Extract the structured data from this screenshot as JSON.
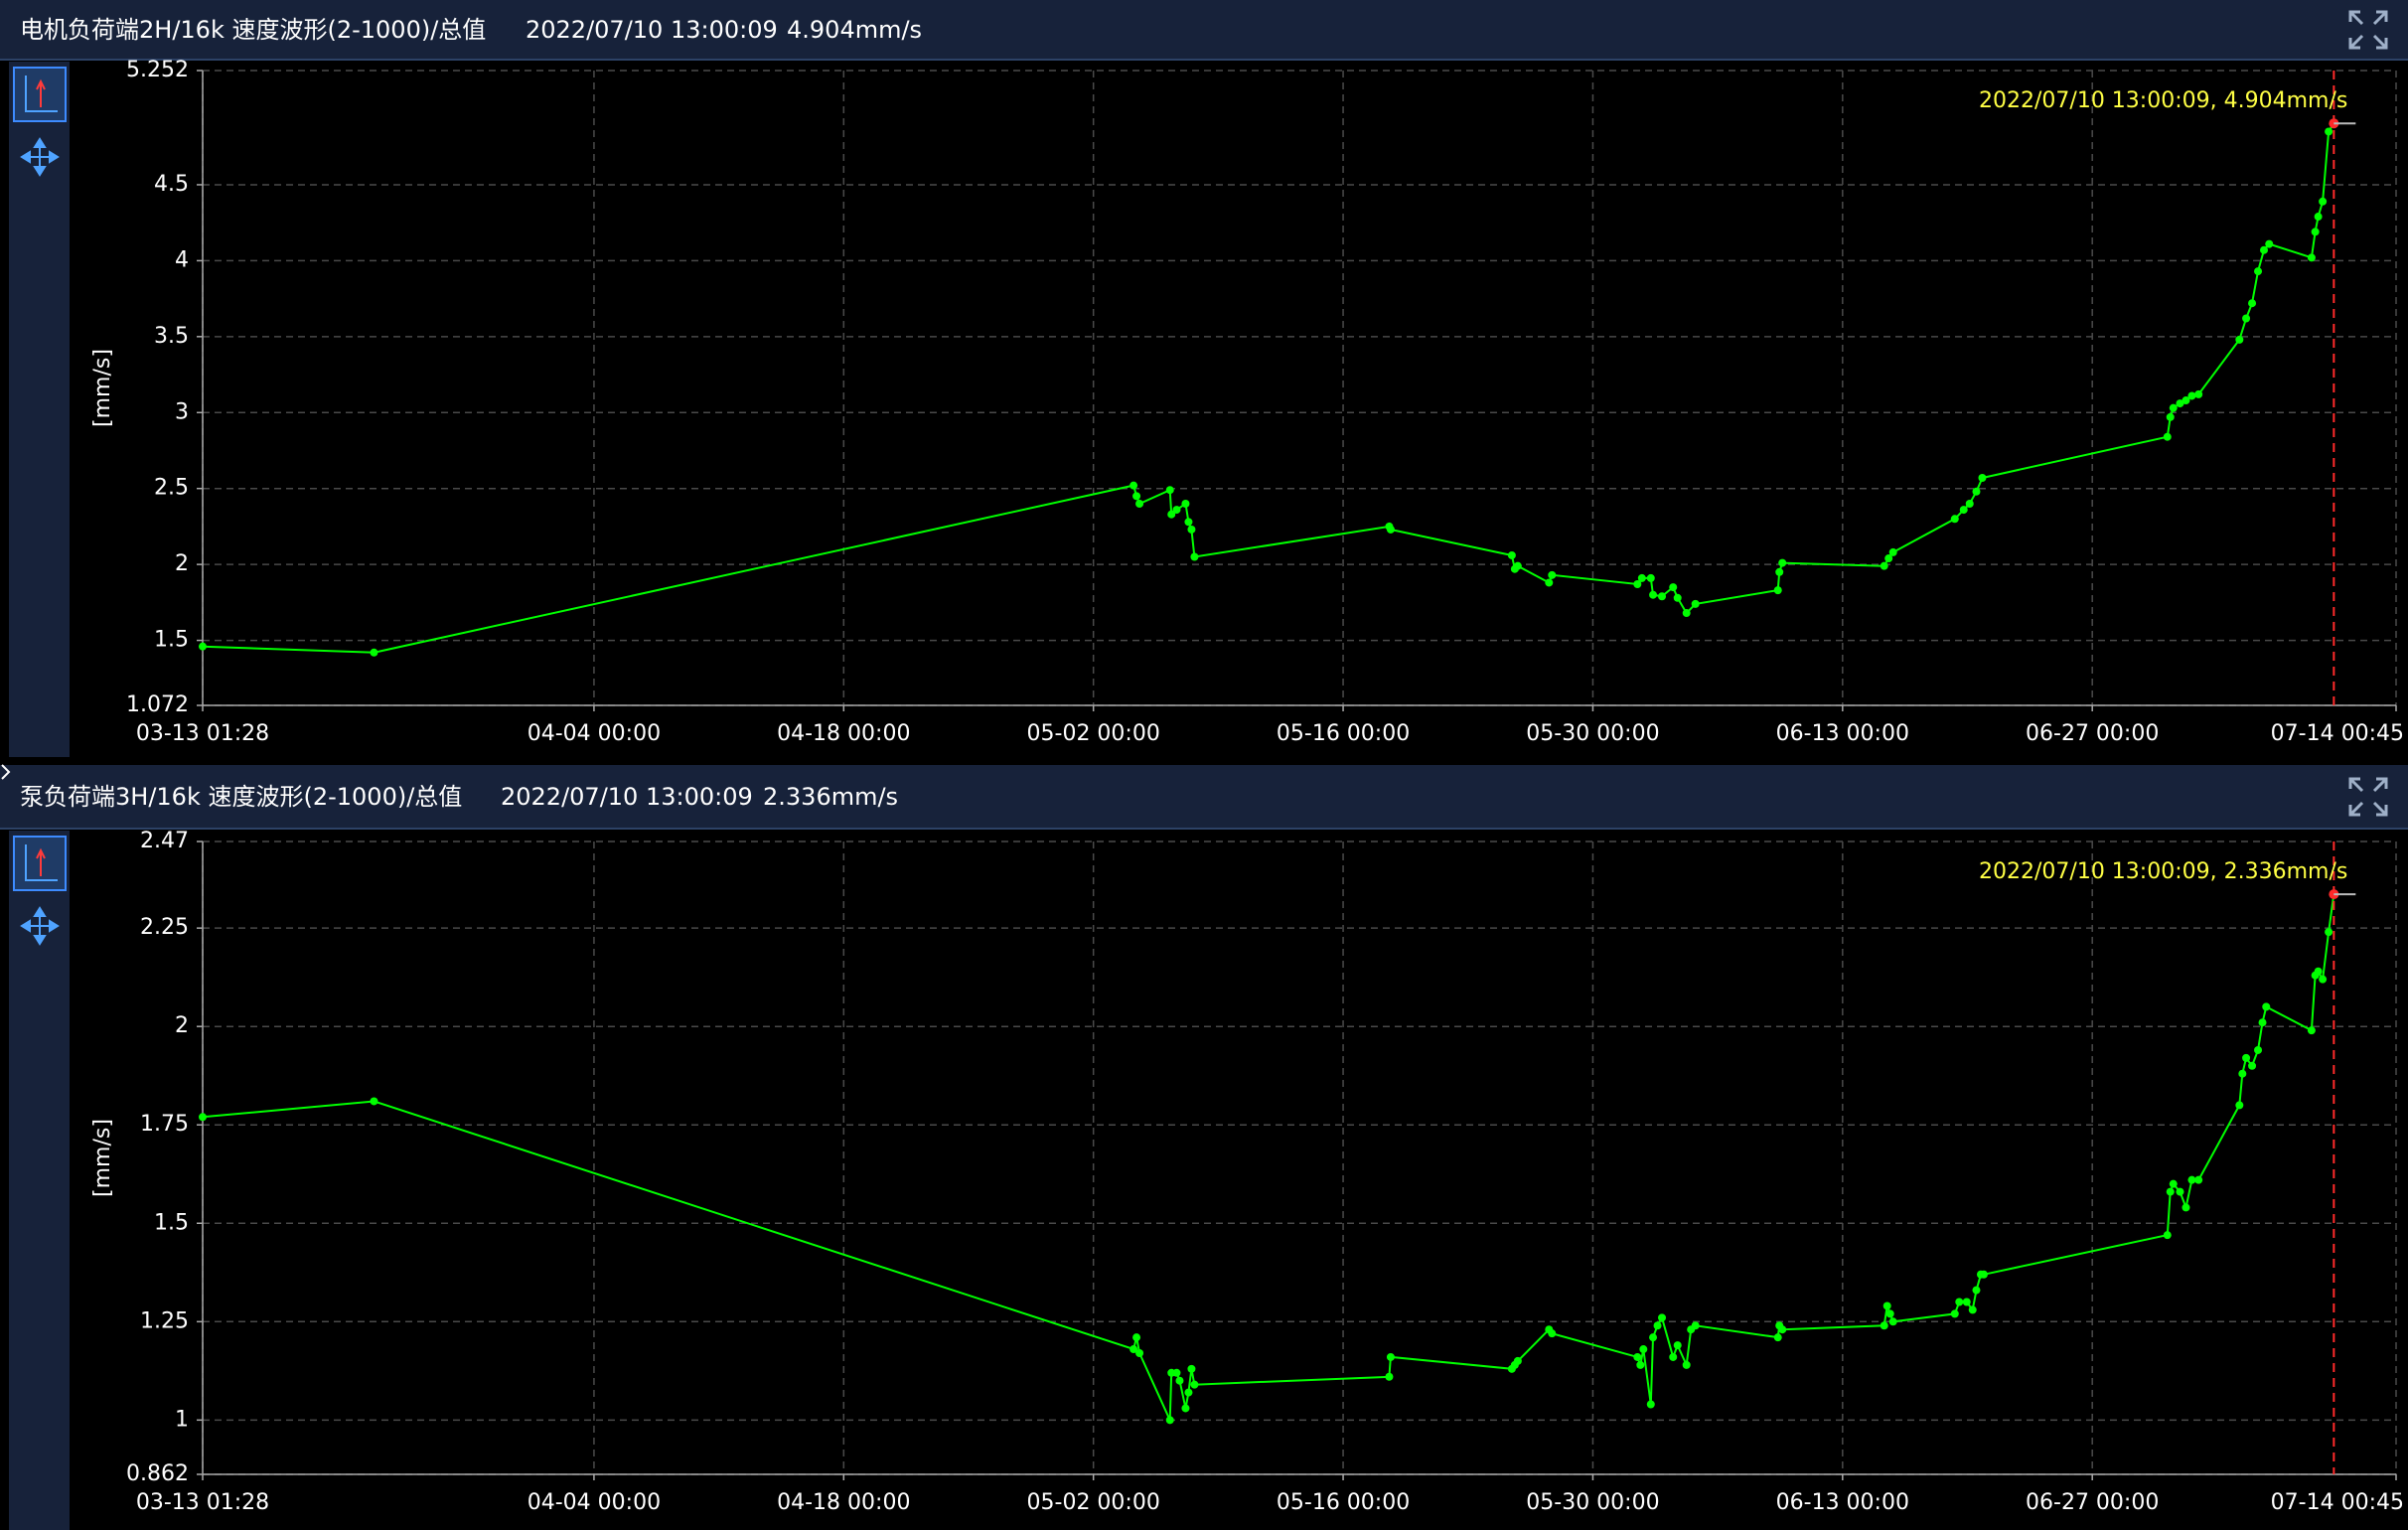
{
  "chart_data": [
    {
      "type": "line",
      "title": "电机负荷端2H/16k 速度波形(2-1000)/总值",
      "timestamp": "2022/07/10 13:00:09",
      "reading": "4.904mm/s",
      "ylabel": "[mm/s]",
      "annotation": "2022/07/10 13:00:09, 4.904mm/s",
      "x": [
        "03-13 01:28",
        "03-22 16:00",
        "05-04 06:00",
        "05-04 10:00",
        "05-04 14:00",
        "05-06 07:00",
        "05-06 09:00",
        "05-06 16:00",
        "05-07 04:00",
        "05-07 08:00",
        "05-07 12:00",
        "05-07 16:00",
        "05-18 14:00",
        "05-18 16:00",
        "05-25 11:00",
        "05-25 15:00",
        "05-25 19:00",
        "05-27 13:00",
        "05-27 17:00",
        "06-01 12:00",
        "06-01 18:00",
        "06-02 06:00",
        "06-02 09:00",
        "06-02 21:00",
        "06-03 12:00",
        "06-03 18:00",
        "06-04 06:00",
        "06-04 18:00",
        "06-09 09:00",
        "06-09 11:00",
        "06-09 15:00",
        "06-15 08:00",
        "06-15 14:00",
        "06-15 20:00",
        "06-19 07:00",
        "06-19 19:00",
        "06-20 03:00",
        "06-20 12:00",
        "06-20 20:00",
        "07-01 05:00",
        "07-01 09:00",
        "07-01 13:00",
        "07-01 22:00",
        "07-02 06:00",
        "07-02 14:00",
        "07-02 23:00",
        "07-05 06:00",
        "07-05 15:00",
        "07-05 23:00",
        "07-06 07:00",
        "07-06 15:00",
        "07-06 22:00",
        "07-09 07:00",
        "07-09 12:00",
        "07-09 16:00",
        "07-09 22:00",
        "07-10 06:00",
        "07-10 13:00"
      ],
      "series": [
        {
          "color": "#00ff00",
          "values": [
            1.46,
            1.42,
            2.52,
            2.45,
            2.4,
            2.49,
            2.33,
            2.36,
            2.4,
            2.28,
            2.23,
            2.05,
            2.25,
            2.23,
            2.06,
            1.97,
            1.99,
            1.88,
            1.93,
            1.87,
            1.91,
            1.91,
            1.8,
            1.79,
            1.85,
            1.78,
            1.68,
            1.74,
            1.83,
            1.95,
            2.01,
            1.99,
            2.04,
            2.08,
            2.3,
            2.36,
            2.4,
            2.48,
            2.57,
            2.84,
            2.97,
            3.03,
            3.06,
            3.08,
            3.11,
            3.12,
            3.48,
            3.62,
            3.72,
            3.93,
            4.07,
            4.11,
            4.02,
            4.19,
            4.29,
            4.39,
            4.85,
            4.904
          ]
        }
      ],
      "xlim": [
        "03-13 01:28",
        "07-14 00:45"
      ],
      "xticks": [
        "03-13 01:28",
        "04-04 00:00",
        "04-18 00:00",
        "05-02 00:00",
        "05-16 00:00",
        "05-30 00:00",
        "06-13 00:00",
        "06-27 00:00",
        "07-14 00:45"
      ],
      "ylim": [
        1.072,
        5.252
      ],
      "yticks": [
        1.072,
        1.5,
        2,
        2.5,
        3,
        3.5,
        4,
        4.5,
        5.252
      ],
      "grid": true,
      "highlight_color": "#ff2a2a"
    },
    {
      "type": "line",
      "title": "泵负荷端3H/16k 速度波形(2-1000)/总值",
      "timestamp": "2022/07/10 13:00:09",
      "reading": "2.336mm/s",
      "ylabel": "[mm/s]",
      "annotation": "2022/07/10 13:00:09, 2.336mm/s",
      "x": [
        "03-13 01:28",
        "03-22 16:00",
        "05-04 06:00",
        "05-04 10:00",
        "05-04 14:00",
        "05-06 07:00",
        "05-06 09:00",
        "05-06 16:00",
        "05-06 20:00",
        "05-07 04:00",
        "05-07 08:00",
        "05-07 12:00",
        "05-07 16:00",
        "05-18 14:00",
        "05-18 16:00",
        "05-25 11:00",
        "05-25 15:00",
        "05-25 19:00",
        "05-27 13:00",
        "05-27 17:00",
        "06-01 12:00",
        "06-01 16:00",
        "06-01 20:00",
        "06-02 06:00",
        "06-02 09:00",
        "06-02 15:00",
        "06-02 21:00",
        "06-03 12:00",
        "06-03 18:00",
        "06-04 06:00",
        "06-04 12:00",
        "06-04 18:00",
        "06-09 09:00",
        "06-09 11:00",
        "06-09 15:00",
        "06-15 08:00",
        "06-15 12:00",
        "06-15 16:00",
        "06-15 20:00",
        "06-19 07:00",
        "06-19 13:00",
        "06-19 23:00",
        "06-20 07:00",
        "06-20 12:00",
        "06-20 18:00",
        "06-20 22:00",
        "07-01 05:00",
        "07-01 09:00",
        "07-01 13:00",
        "07-01 22:00",
        "07-02 06:00",
        "07-02 14:00",
        "07-02 23:00",
        "07-05 06:00",
        "07-05 10:00",
        "07-05 15:00",
        "07-05 23:00",
        "07-06 07:00",
        "07-06 13:00",
        "07-06 18:00",
        "07-09 07:00",
        "07-09 12:00",
        "07-09 16:00",
        "07-09 22:00",
        "07-10 06:00",
        "07-10 13:00"
      ],
      "series": [
        {
          "color": "#00ff00",
          "values": [
            1.77,
            1.81,
            1.18,
            1.21,
            1.17,
            1.0,
            1.12,
            1.12,
            1.1,
            1.03,
            1.07,
            1.13,
            1.09,
            1.11,
            1.16,
            1.13,
            1.14,
            1.15,
            1.23,
            1.22,
            1.16,
            1.14,
            1.18,
            1.04,
            1.21,
            1.24,
            1.26,
            1.16,
            1.19,
            1.14,
            1.23,
            1.24,
            1.21,
            1.24,
            1.23,
            1.24,
            1.29,
            1.27,
            1.25,
            1.27,
            1.3,
            1.3,
            1.28,
            1.33,
            1.37,
            1.37,
            1.47,
            1.58,
            1.6,
            1.58,
            1.54,
            1.61,
            1.61,
            1.8,
            1.88,
            1.92,
            1.9,
            1.94,
            2.01,
            2.05,
            1.99,
            2.13,
            2.14,
            2.12,
            2.24,
            2.336
          ]
        }
      ],
      "xlim": [
        "03-13 01:28",
        "07-14 00:45"
      ],
      "xticks": [
        "03-13 01:28",
        "04-04 00:00",
        "04-18 00:00",
        "05-02 00:00",
        "05-16 00:00",
        "05-30 00:00",
        "06-13 00:00",
        "06-27 00:00",
        "07-14 00:45"
      ],
      "ylim": [
        0.862,
        2.47
      ],
      "yticks": [
        0.862,
        1,
        1.25,
        1.5,
        1.75,
        2,
        2.25,
        2.47
      ],
      "grid": true,
      "highlight_color": "#ff2a2a"
    }
  ]
}
